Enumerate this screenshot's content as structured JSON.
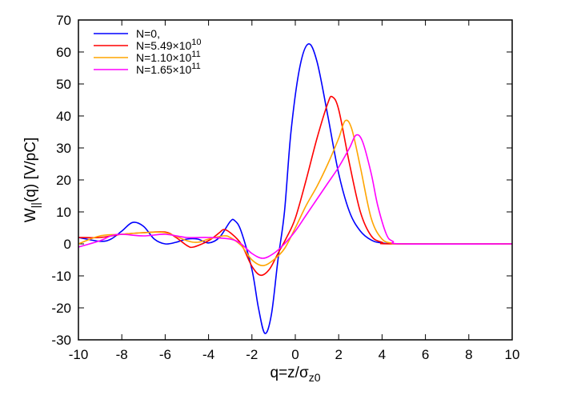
{
  "chart_data": {
    "type": "line",
    "xlabel": {
      "main": "q=z/σ",
      "sub": "z0"
    },
    "ylabel": {
      "main": "W",
      "sub": "||",
      "rest": "(q) [V/pC]"
    },
    "xlim": [
      -10,
      10
    ],
    "ylim": [
      -30,
      70
    ],
    "xticks": [
      -10,
      -8,
      -6,
      -4,
      -2,
      0,
      2,
      4,
      6,
      8,
      10
    ],
    "yticks": [
      -30,
      -20,
      -10,
      0,
      10,
      20,
      30,
      40,
      50,
      60,
      70
    ],
    "grid": false,
    "legend_position": "top-left",
    "series": [
      {
        "name": "N=0,",
        "exp": "",
        "color": "#0000ff",
        "points": [
          [
            -10,
            2
          ],
          [
            -9,
            0.8
          ],
          [
            -8.5,
            1.5
          ],
          [
            -8,
            4
          ],
          [
            -7.5,
            6.7
          ],
          [
            -7,
            5.5
          ],
          [
            -6.5,
            1.5
          ],
          [
            -6,
            0
          ],
          [
            -5.5,
            0.5
          ],
          [
            -5,
            1.5
          ],
          [
            -4.5,
            1.5
          ],
          [
            -4,
            0.3
          ],
          [
            -3.5,
            2
          ],
          [
            -3,
            7
          ],
          [
            -2.8,
            7.3
          ],
          [
            -2.5,
            4
          ],
          [
            -2,
            -8
          ],
          [
            -1.7,
            -20
          ],
          [
            -1.4,
            -28
          ],
          [
            -1.1,
            -22
          ],
          [
            -0.8,
            -5
          ],
          [
            -0.5,
            10
          ],
          [
            -0.2,
            35
          ],
          [
            0.2,
            55
          ],
          [
            0.6,
            62.5
          ],
          [
            1,
            57
          ],
          [
            1.5,
            40
          ],
          [
            2,
            22
          ],
          [
            2.5,
            10
          ],
          [
            3,
            4
          ],
          [
            3.5,
            1.2
          ],
          [
            4,
            0.3
          ],
          [
            5,
            0
          ],
          [
            10,
            0
          ]
        ]
      },
      {
        "name": "N=5.49×10",
        "exp": "10",
        "color": "#ff0000",
        "points": [
          [
            -10,
            2
          ],
          [
            -9,
            2
          ],
          [
            -8,
            3
          ],
          [
            -7,
            3.5
          ],
          [
            -6,
            3.7
          ],
          [
            -5.5,
            2
          ],
          [
            -5,
            -0.5
          ],
          [
            -4.7,
            -1
          ],
          [
            -4,
            1
          ],
          [
            -3.5,
            3.5
          ],
          [
            -3.3,
            4.5
          ],
          [
            -3,
            3.5
          ],
          [
            -2.5,
            0
          ],
          [
            -2,
            -7
          ],
          [
            -1.6,
            -9.8
          ],
          [
            -1.2,
            -8
          ],
          [
            -0.8,
            -3
          ],
          [
            -0.4,
            2
          ],
          [
            0,
            8
          ],
          [
            0.5,
            20
          ],
          [
            1,
            33
          ],
          [
            1.5,
            44
          ],
          [
            1.7,
            46
          ],
          [
            2,
            42
          ],
          [
            2.5,
            25
          ],
          [
            3,
            10
          ],
          [
            3.5,
            2.5
          ],
          [
            4,
            0.5
          ],
          [
            4.5,
            0
          ],
          [
            10,
            0
          ]
        ]
      },
      {
        "name": "N=1.10×10",
        "exp": "11",
        "color": "#ffa500",
        "points": [
          [
            -10,
            0
          ],
          [
            -9,
            2.5
          ],
          [
            -8,
            3
          ],
          [
            -7,
            3.5
          ],
          [
            -6,
            3.5
          ],
          [
            -5,
            1
          ],
          [
            -4.5,
            0.5
          ],
          [
            -4,
            1.5
          ],
          [
            -3.3,
            2.5
          ],
          [
            -3,
            2
          ],
          [
            -2.5,
            -0.5
          ],
          [
            -2,
            -5
          ],
          [
            -1.5,
            -6.8
          ],
          [
            -1,
            -5
          ],
          [
            -0.5,
            -1.5
          ],
          [
            0,
            5
          ],
          [
            0.5,
            12
          ],
          [
            1,
            18
          ],
          [
            1.5,
            25
          ],
          [
            2,
            33
          ],
          [
            2.3,
            38.5
          ],
          [
            2.6,
            36
          ],
          [
            3,
            24
          ],
          [
            3.5,
            8
          ],
          [
            4,
            1.5
          ],
          [
            4.5,
            0.2
          ],
          [
            5,
            0
          ],
          [
            10,
            0
          ]
        ]
      },
      {
        "name": "N=1.65×10",
        "exp": "11",
        "color": "#ff00ff",
        "points": [
          [
            -10,
            -1
          ],
          [
            -9,
            1
          ],
          [
            -8.5,
            2.5
          ],
          [
            -8,
            3
          ],
          [
            -7,
            2.5
          ],
          [
            -6,
            3
          ],
          [
            -5,
            2
          ],
          [
            -4,
            2
          ],
          [
            -3,
            1.5
          ],
          [
            -2.5,
            0
          ],
          [
            -2,
            -3
          ],
          [
            -1.5,
            -4.5
          ],
          [
            -1,
            -3
          ],
          [
            -0.5,
            0
          ],
          [
            0,
            4
          ],
          [
            0.5,
            9
          ],
          [
            1,
            14
          ],
          [
            1.5,
            19
          ],
          [
            2,
            24
          ],
          [
            2.5,
            30
          ],
          [
            2.8,
            34
          ],
          [
            3.1,
            32
          ],
          [
            3.5,
            22
          ],
          [
            3.8,
            12
          ],
          [
            4.2,
            3
          ],
          [
            4.5,
            0.8
          ],
          [
            5,
            0
          ],
          [
            10,
            0
          ]
        ]
      }
    ]
  }
}
